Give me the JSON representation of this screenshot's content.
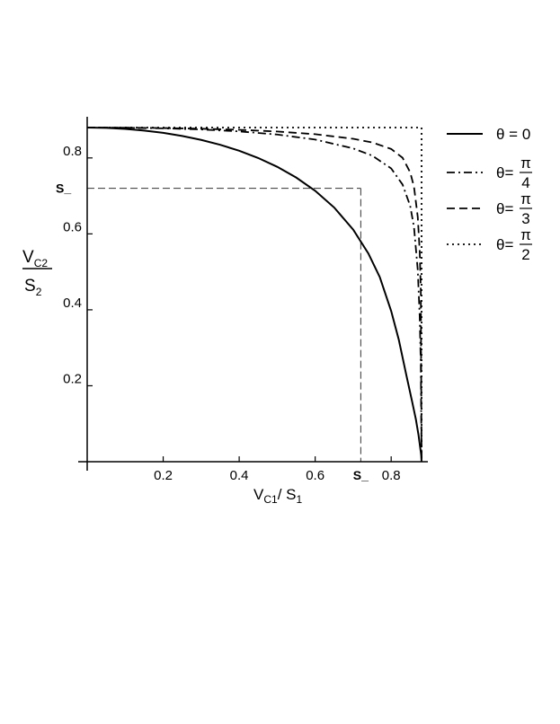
{
  "chart_data": {
    "type": "line",
    "xlim": [
      0,
      0.88
    ],
    "ylim": [
      0,
      0.88
    ],
    "x_ticks": [
      {
        "value": 0.2,
        "label": "0.2"
      },
      {
        "value": 0.4,
        "label": "0.4"
      },
      {
        "value": 0.6,
        "label": "0.6"
      },
      {
        "value": 0.8,
        "label": "0.8"
      }
    ],
    "y_ticks": [
      {
        "value": 0.2,
        "label": "0.2"
      },
      {
        "value": 0.4,
        "label": "0.4"
      },
      {
        "value": 0.6,
        "label": "0.6"
      },
      {
        "value": 0.8,
        "label": "0.8"
      }
    ],
    "xlabel": {
      "main": "V",
      "sub1": "C1",
      "sep": "/ S",
      "sub2": "1"
    },
    "ylabel": {
      "top_main": "V",
      "top_sub": "C2",
      "bottom_main": "S",
      "bottom_sub": "2"
    },
    "marker": {
      "label": "S_",
      "value": 0.72
    },
    "grid": false,
    "legend_position": "right",
    "series": [
      {
        "name_prefix": "θ = 0",
        "fraction_num": "",
        "fraction_den": "",
        "dash": "solid",
        "x": [
          0,
          0.05,
          0.1,
          0.15,
          0.2,
          0.25,
          0.3,
          0.35,
          0.4,
          0.45,
          0.5,
          0.55,
          0.6,
          0.65,
          0.7,
          0.74,
          0.77,
          0.8,
          0.82,
          0.84,
          0.855,
          0.865,
          0.872,
          0.876,
          0.878,
          0.879,
          0.88
        ],
        "y": [
          0.88,
          0.8791,
          0.8765,
          0.8721,
          0.866,
          0.8578,
          0.8474,
          0.8346,
          0.8189,
          0.7998,
          0.7767,
          0.7484,
          0.7135,
          0.6694,
          0.6112,
          0.5484,
          0.4862,
          0.3968,
          0.3215,
          0.2275,
          0.1589,
          0.1116,
          0.0701,
          0.0403,
          0.0254,
          0.0176,
          0.0
        ]
      },
      {
        "name_prefix": "θ=",
        "fraction_num": "π",
        "fraction_den": "4",
        "dash": "dashdot",
        "x": [
          0,
          0.1,
          0.2,
          0.3,
          0.4,
          0.5,
          0.6,
          0.7,
          0.75,
          0.8,
          0.83,
          0.85,
          0.86,
          0.87,
          0.875,
          0.878,
          0.88
        ],
        "y": [
          0.88,
          0.8795,
          0.878,
          0.875,
          0.8699,
          0.8616,
          0.8484,
          0.825,
          0.8061,
          0.7723,
          0.7299,
          0.6738,
          0.6185,
          0.5042,
          0.3846,
          0.2544,
          0.0
        ]
      },
      {
        "name_prefix": "θ=",
        "fraction_num": "π",
        "fraction_den": "3",
        "dash": "dashed",
        "x": [
          0,
          0.1,
          0.2,
          0.3,
          0.4,
          0.5,
          0.6,
          0.7,
          0.75,
          0.8,
          0.83,
          0.85,
          0.86,
          0.87,
          0.875,
          0.878,
          0.88
        ],
        "y": [
          0.88,
          0.8797,
          0.8787,
          0.8769,
          0.8741,
          0.8696,
          0.8625,
          0.8504,
          0.8408,
          0.8236,
          0.8004,
          0.7621,
          0.7244,
          0.6442,
          0.5562,
          0.4482,
          0.0
        ]
      },
      {
        "name_prefix": "θ=",
        "fraction_num": "π",
        "fraction_den": "2",
        "dash": "dotted",
        "x": [
          0,
          0.88,
          0.88
        ],
        "y": [
          0.88,
          0.88,
          0.0
        ]
      }
    ]
  }
}
